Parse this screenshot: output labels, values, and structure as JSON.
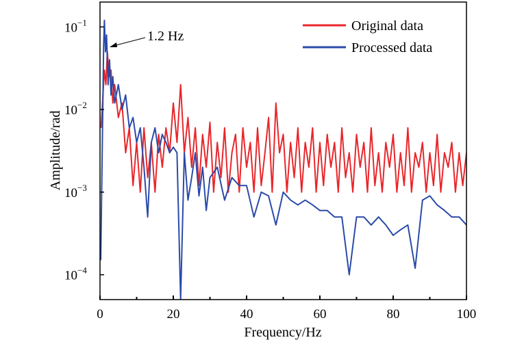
{
  "chart_data": {
    "type": "line",
    "title": "",
    "xlabel": "Frequency/Hz",
    "ylabel": "Amplitude/rad",
    "xlim": [
      0,
      100
    ],
    "ylim": [
      5e-05,
      0.2
    ],
    "yscale": "log",
    "x_ticks": [
      0,
      20,
      40,
      60,
      80,
      100
    ],
    "x_tick_labels": [
      "0",
      "20",
      "40",
      "60",
      "80",
      "100"
    ],
    "y_ticks": [
      0.1,
      0.01,
      0.001,
      0.0001
    ],
    "y_tick_labels": [
      {
        "base": "10",
        "exp": "−1"
      },
      {
        "base": "10",
        "exp": "−2"
      },
      {
        "base": "10",
        "exp": "−3"
      },
      {
        "base": "10",
        "exp": "−4"
      }
    ],
    "grid": false,
    "legend_position": "top-right",
    "annotation": {
      "text": "1.2 Hz",
      "x": 1.2,
      "y": 0.12
    },
    "series": [
      {
        "name": "Original data",
        "color": "#e8262a",
        "x": [
          0.3,
          0.8,
          1.2,
          1.6,
          2.0,
          2.5,
          3.0,
          3.5,
          4,
          5,
          6,
          7,
          8,
          9,
          10,
          11,
          12,
          13,
          14,
          15,
          16,
          17,
          18,
          19,
          20,
          21,
          22,
          23,
          24,
          25,
          26,
          27,
          28,
          29,
          30,
          31,
          32,
          33,
          34,
          35,
          36,
          37,
          38,
          39,
          40,
          41,
          42,
          43,
          44,
          45,
          46,
          47,
          48,
          49,
          50,
          51,
          52,
          53,
          54,
          55,
          56,
          57,
          58,
          59,
          60,
          61,
          62,
          63,
          64,
          65,
          66,
          67,
          68,
          69,
          70,
          71,
          72,
          73,
          74,
          75,
          76,
          77,
          78,
          79,
          80,
          81,
          82,
          83,
          84,
          85,
          86,
          87,
          88,
          89,
          90,
          91,
          92,
          93,
          94,
          95,
          96,
          97,
          98,
          99,
          100
        ],
        "y": [
          0.006,
          0.015,
          0.03,
          0.02,
          0.05,
          0.025,
          0.03,
          0.012,
          0.02,
          0.008,
          0.012,
          0.003,
          0.006,
          0.0012,
          0.004,
          0.001,
          0.006,
          0.0015,
          0.004,
          0.001,
          0.005,
          0.002,
          0.006,
          0.003,
          0.012,
          0.004,
          0.02,
          0.003,
          0.008,
          0.002,
          0.006,
          0.0012,
          0.005,
          0.002,
          0.007,
          0.001,
          0.004,
          0.0015,
          0.006,
          0.001,
          0.003,
          0.005,
          0.001,
          0.006,
          0.002,
          0.004,
          0.001,
          0.006,
          0.0012,
          0.003,
          0.008,
          0.001,
          0.012,
          0.003,
          0.005,
          0.001,
          0.004,
          0.0015,
          0.006,
          0.001,
          0.004,
          0.002,
          0.006,
          0.001,
          0.004,
          0.0012,
          0.005,
          0.002,
          0.004,
          0.001,
          0.006,
          0.0015,
          0.003,
          0.001,
          0.005,
          0.002,
          0.004,
          0.001,
          0.006,
          0.0012,
          0.003,
          0.001,
          0.004,
          0.002,
          0.005,
          0.001,
          0.003,
          0.0012,
          0.006,
          0.001,
          0.003,
          0.002,
          0.004,
          0.001,
          0.003,
          0.0012,
          0.005,
          0.001,
          0.003,
          0.002,
          0.004,
          0.001,
          0.003,
          0.0012,
          0.003
        ]
      },
      {
        "name": "Processed data",
        "color": "#2a4aa8",
        "x": [
          0.2,
          0.6,
          1.0,
          1.2,
          1.5,
          1.8,
          2.2,
          2.6,
          3.0,
          3.5,
          4,
          5,
          6,
          7,
          8,
          9,
          10,
          11,
          12,
          13,
          14,
          15,
          16,
          17,
          18,
          19,
          20,
          21,
          22,
          23,
          24,
          25,
          26,
          27,
          28,
          29,
          30,
          32,
          34,
          36,
          38,
          40,
          42,
          44,
          46,
          48,
          50,
          52,
          54,
          56,
          58,
          60,
          62,
          64,
          66,
          68,
          70,
          72,
          74,
          76,
          78,
          80,
          82,
          84,
          86,
          88,
          90,
          92,
          94,
          96,
          98,
          100
        ],
        "y": [
          0.00015,
          0.003,
          0.06,
          0.12,
          0.05,
          0.08,
          0.02,
          0.04,
          0.015,
          0.025,
          0.012,
          0.02,
          0.01,
          0.015,
          0.006,
          0.008,
          0.004,
          0.006,
          0.002,
          0.0005,
          0.004,
          0.006,
          0.003,
          0.005,
          0.004,
          0.003,
          0.0035,
          0.003,
          5e-05,
          0.003,
          0.0008,
          0.0015,
          0.003,
          0.0009,
          0.002,
          0.0006,
          0.0015,
          0.002,
          0.0008,
          0.0015,
          0.0012,
          0.0012,
          0.0005,
          0.001,
          0.0009,
          0.0004,
          0.001,
          0.0008,
          0.0007,
          0.0008,
          0.0007,
          0.0006,
          0.0006,
          0.0005,
          0.0005,
          0.0001,
          0.0005,
          0.0005,
          0.0004,
          0.0005,
          0.0004,
          0.0003,
          0.00035,
          0.0004,
          0.00012,
          0.0008,
          0.0009,
          0.0007,
          0.0006,
          0.0005,
          0.0005,
          0.0004
        ]
      }
    ]
  }
}
